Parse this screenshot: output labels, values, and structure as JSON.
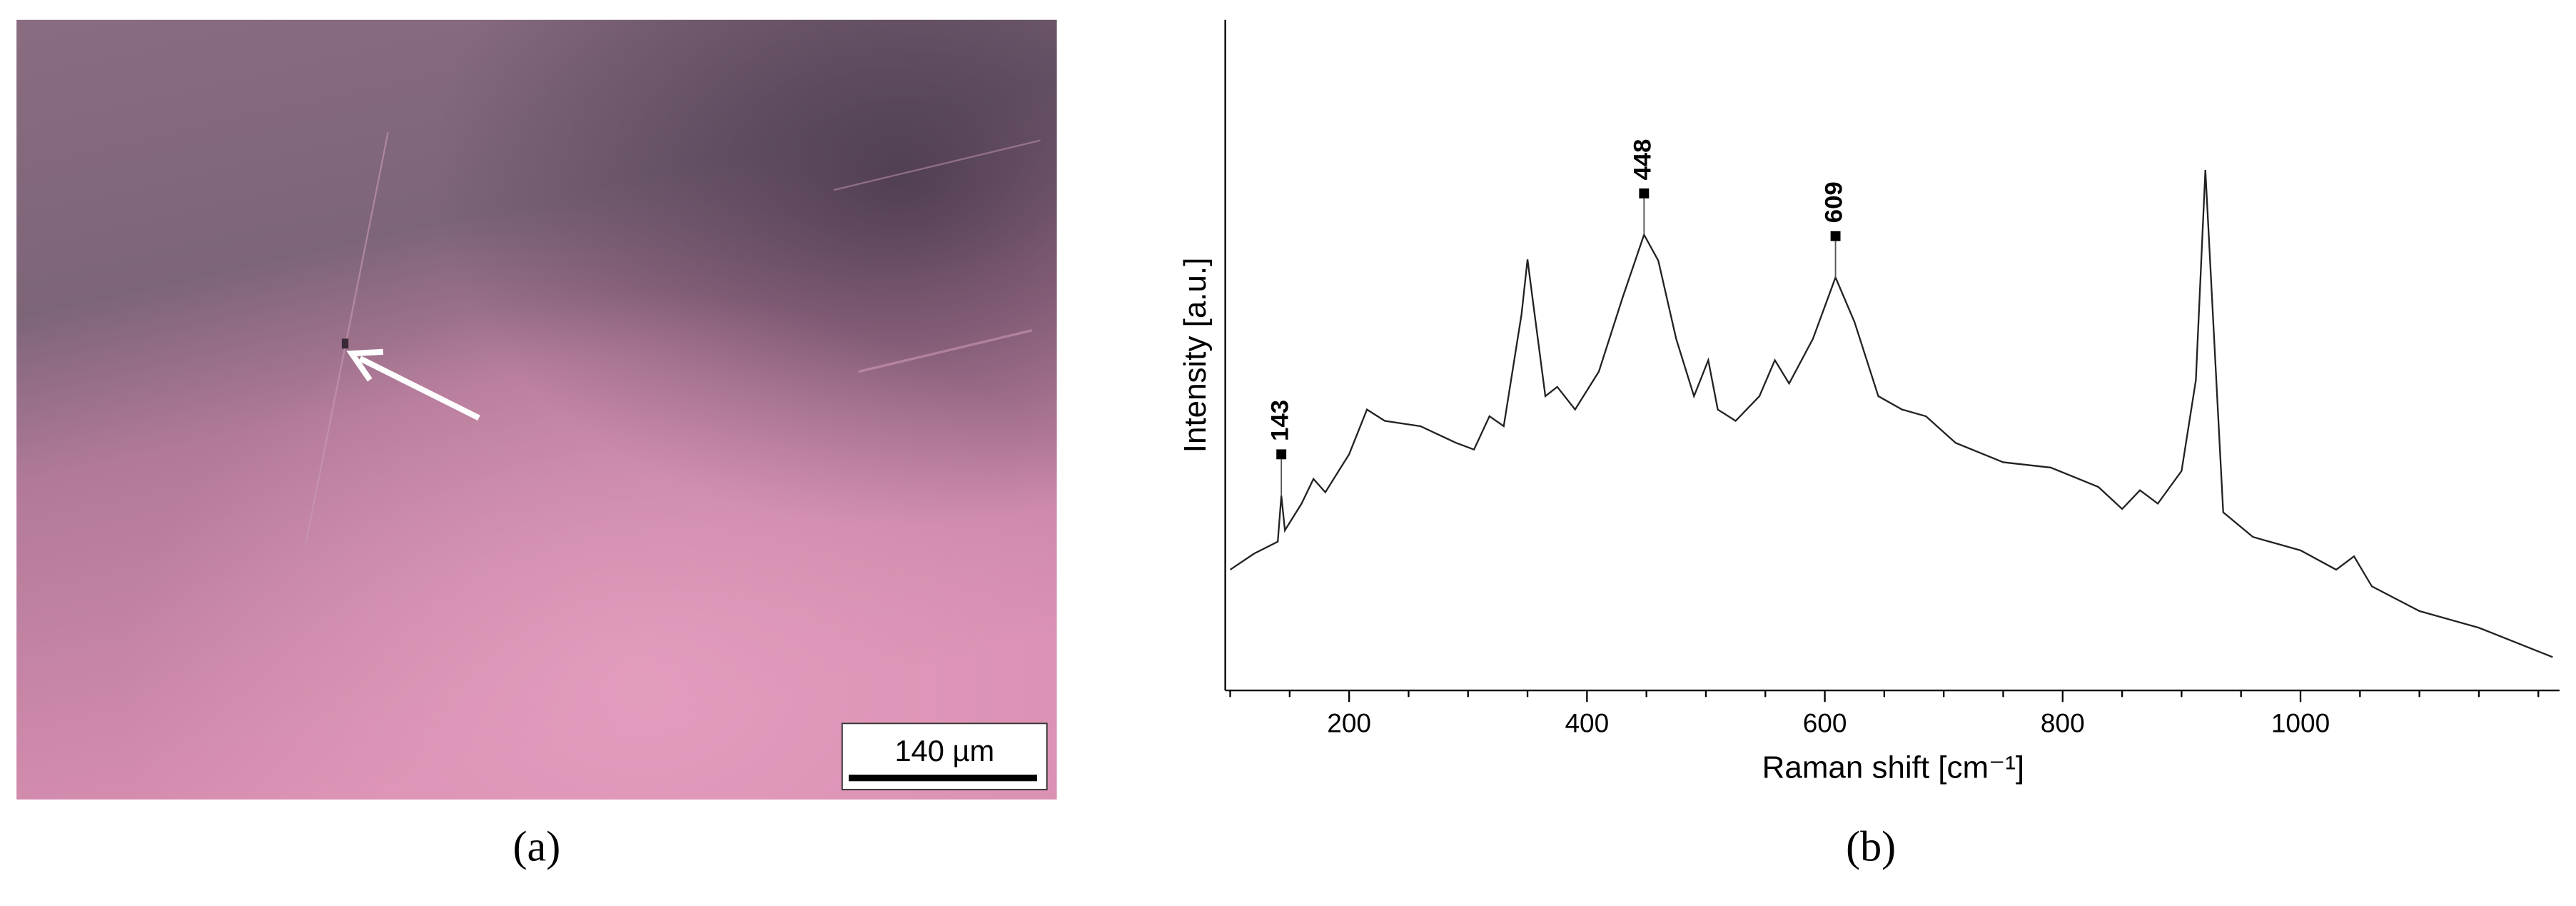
{
  "panel_a": {
    "scale_bar": "140 µm",
    "label": "(a)"
  },
  "panel_b": {
    "label": "(b)"
  },
  "chart_data": {
    "type": "line",
    "xlabel": "Raman shift [cm⁻¹]",
    "ylabel": "Intensity [a.u.]",
    "x": [
      100,
      120,
      140,
      143,
      146,
      160,
      170,
      180,
      200,
      215,
      230,
      260,
      290,
      305,
      318,
      330,
      345,
      350,
      355,
      365,
      375,
      390,
      410,
      430,
      448,
      460,
      475,
      490,
      502,
      510,
      525,
      545,
      558,
      570,
      590,
      609,
      625,
      645,
      665,
      685,
      710,
      750,
      790,
      830,
      850,
      865,
      880,
      900,
      912,
      920,
      927,
      935,
      960,
      1000,
      1030,
      1045,
      1060,
      1100,
      1150,
      1212
    ],
    "values": [
      17.6,
      20,
      21.8,
      28.7,
      23.5,
      27.5,
      31.2,
      29.2,
      34.9,
      41.6,
      39.9,
      39.1,
      36.6,
      35.6,
      40.6,
      39.1,
      55.9,
      64.1,
      57.2,
      43.6,
      45.0,
      41.6,
      47.3,
      58.4,
      67.8,
      63.9,
      52.2,
      43.6,
      49.0,
      41.6,
      39.9,
      43.6,
      49.0,
      45.5,
      52.2,
      61.4,
      54.7,
      43.6,
      41.6,
      40.6,
      36.6,
      33.7,
      32.9,
      30.0,
      26.7,
      29.5,
      27.5,
      32.4,
      46.0,
      77.5,
      53.5,
      26.2,
      22.5,
      20.5,
      17.6,
      19.6,
      15.1,
      11.4,
      8.9,
      4.5
    ],
    "color": "#222222",
    "annotations": [
      143,
      448,
      609
    ],
    "xlim": [
      100,
      1215
    ],
    "ylim": [
      0,
      100
    ],
    "xticks": [
      200,
      400,
      600,
      800,
      1000
    ],
    "xminorticks": [
      100,
      150,
      250,
      300,
      350,
      450,
      500,
      550,
      650,
      700,
      750,
      850,
      900,
      950,
      1050,
      1100,
      1150,
      1200
    ]
  }
}
